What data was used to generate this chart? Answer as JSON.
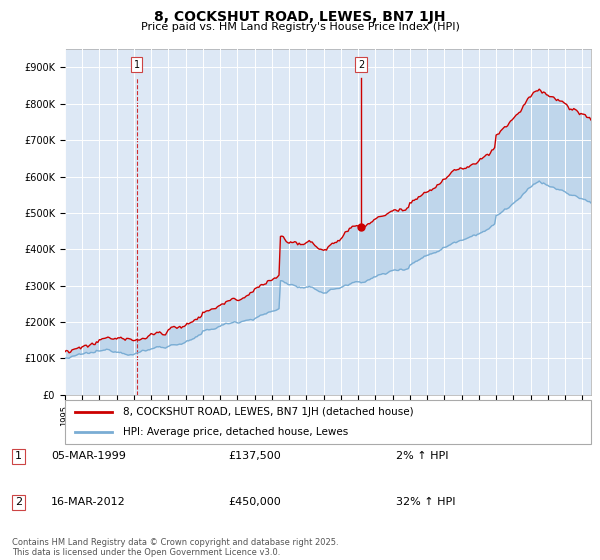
{
  "title": "8, COCKSHUT ROAD, LEWES, BN7 1JH",
  "subtitle": "Price paid vs. HM Land Registry's House Price Index (HPI)",
  "background_color": "#ffffff",
  "plot_bg_color": "#dde8f5",
  "grid_color": "#ffffff",
  "sale1": {
    "label": "1",
    "date": "05-MAR-1999",
    "price": 137500,
    "pct": "2%",
    "direction": "↑"
  },
  "sale2": {
    "label": "2",
    "date": "16-MAR-2012",
    "price": 450000,
    "pct": "32%",
    "direction": "↑"
  },
  "legend_label_property": "8, COCKSHUT ROAD, LEWES, BN7 1JH (detached house)",
  "legend_label_hpi": "HPI: Average price, detached house, Lewes",
  "footnote": "Contains HM Land Registry data © Crown copyright and database right 2025.\nThis data is licensed under the Open Government Licence v3.0.",
  "property_color": "#cc0000",
  "hpi_color": "#7aadd4",
  "ylim_max": 950000,
  "ylim_min": 0,
  "sale1_year": 1999.17,
  "sale1_price": 137500,
  "sale2_year": 2012.17,
  "sale2_price": 450000
}
